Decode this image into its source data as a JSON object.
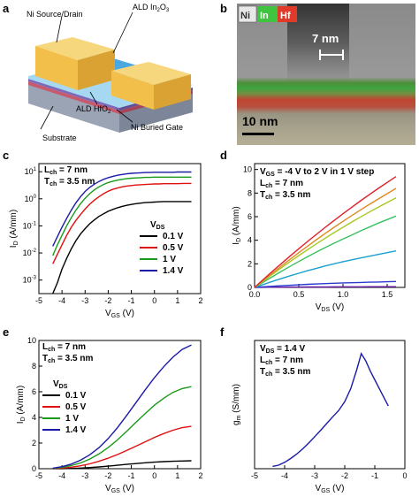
{
  "panel_labels": {
    "a": "a",
    "b": "b",
    "c": "c",
    "d": "d",
    "e": "e",
    "f": "f"
  },
  "panel_a": {
    "labels": {
      "source_drain": "Ni Source/Drain",
      "ald_in2o3": "ALD In",
      "ald_in2o3_sub2": "2",
      "ald_in2o3_o": "O",
      "ald_in2o3_sub3": "3",
      "ald_hfo2": "ALD HfO",
      "ald_hfo2_sub": "2",
      "substrate": "Substrate",
      "buried_gate": "Ni Buried Gate"
    },
    "colors": {
      "contact": "#f2c04a",
      "channel": "#4aa8e0",
      "oxide": "#7c6ab8",
      "gate": "#c85a6e",
      "substrate": "#9aa4b4"
    }
  },
  "panel_b": {
    "legend": [
      "Ni",
      "In",
      "Hf"
    ],
    "legend_colors": [
      "#ffffff",
      "#3ec43e",
      "#e23a2a"
    ],
    "scale_top": "7 nm",
    "scale_bottom": "10 nm"
  },
  "chart_data": [
    {
      "id": "c",
      "type": "line",
      "xlabel": "V",
      "xlabel_sub": "GS",
      "xlabel_unit": " (V)",
      "ylabel": "I",
      "ylabel_sub": "D",
      "ylabel_unit": " (A/mm)",
      "xlim": [
        -5,
        2
      ],
      "ylim_log": [
        -3.5,
        1.3
      ],
      "yscale": "log",
      "xticks": [
        "-5",
        "-4",
        "-3",
        "-2",
        "-1",
        "0",
        "1",
        "2"
      ],
      "yticks": [
        "10",
        "10",
        "10",
        "10",
        "10"
      ],
      "ytick_exps": [
        "1",
        "0",
        "-1",
        "-2",
        "-3"
      ],
      "annotations": [
        {
          "main": "L",
          "sub": "ch",
          "rest": " = 7 nm"
        },
        {
          "main": "T",
          "sub": "ch",
          "rest": " = 3.5 nm"
        }
      ],
      "legend_title": "V",
      "legend_title_sub": "DS",
      "x": [
        -4.4,
        -4.2,
        -4.0,
        -3.8,
        -3.6,
        -3.4,
        -3.2,
        -3.0,
        -2.8,
        -2.6,
        -2.4,
        -2.2,
        -2.0,
        -1.8,
        -1.6,
        -1.4,
        -1.2,
        -1.0,
        -0.8,
        -0.6,
        -0.4,
        -0.2,
        0.0,
        0.2,
        0.4,
        0.6,
        0.8,
        1.0,
        1.2,
        1.4,
        1.6
      ],
      "series": [
        {
          "name": "0.1 V",
          "color": "#000000",
          "log_values": [
            -3.5,
            -3.1,
            -2.6,
            -2.2,
            -1.85,
            -1.55,
            -1.3,
            -1.1,
            -0.92,
            -0.78,
            -0.65,
            -0.55,
            -0.46,
            -0.39,
            -0.33,
            -0.28,
            -0.24,
            -0.21,
            -0.18,
            -0.16,
            -0.14,
            -0.13,
            -0.12,
            -0.11,
            -0.1,
            -0.1,
            -0.1,
            -0.1,
            -0.1,
            -0.1,
            -0.1
          ]
        },
        {
          "name": "0.5 V",
          "color": "#e01010",
          "log_values": [
            -2.4,
            -2.05,
            -1.7,
            -1.35,
            -1.05,
            -0.8,
            -0.58,
            -0.38,
            -0.2,
            -0.05,
            0.08,
            0.19,
            0.28,
            0.35,
            0.4,
            0.44,
            0.47,
            0.49,
            0.51,
            0.52,
            0.53,
            0.54,
            0.55,
            0.55,
            0.56,
            0.56,
            0.56,
            0.56,
            0.57,
            0.57,
            0.57
          ]
        },
        {
          "name": "1 V",
          "color": "#1a9a1a",
          "log_values": [
            -2.1,
            -1.7,
            -1.35,
            -1.0,
            -0.7,
            -0.42,
            -0.18,
            0.02,
            0.19,
            0.33,
            0.44,
            0.53,
            0.6,
            0.65,
            0.69,
            0.72,
            0.74,
            0.76,
            0.77,
            0.78,
            0.79,
            0.79,
            0.8,
            0.8,
            0.8,
            0.8,
            0.8,
            0.8,
            0.8,
            0.8,
            0.8
          ]
        },
        {
          "name": "1.4 V",
          "color": "#1a1aa8",
          "log_values": [
            -1.75,
            -1.4,
            -1.05,
            -0.72,
            -0.42,
            -0.15,
            0.08,
            0.27,
            0.42,
            0.54,
            0.64,
            0.72,
            0.78,
            0.83,
            0.87,
            0.9,
            0.92,
            0.94,
            0.95,
            0.96,
            0.97,
            0.97,
            0.98,
            0.98,
            0.98,
            0.98,
            0.98,
            0.99,
            0.99,
            0.99,
            0.99
          ]
        }
      ]
    },
    {
      "id": "d",
      "type": "line",
      "xlabel": "V",
      "xlabel_sub": "DS",
      "xlabel_unit": " (V)",
      "ylabel": "I",
      "ylabel_sub": "D",
      "ylabel_unit": " (A/mm)",
      "xlim": [
        0,
        1.7
      ],
      "ylim": [
        0,
        10.5
      ],
      "xticks": [
        "0.0",
        "0.5",
        "1.0",
        "1.5"
      ],
      "yticks": [
        "0",
        "2",
        "4",
        "6",
        "8",
        "10"
      ],
      "annotations": [
        {
          "main": "V",
          "sub": "GS",
          "rest": " = -4 V to 2 V in 1 V step"
        },
        {
          "main": "L",
          "sub": "ch",
          "rest": " = 7 nm"
        },
        {
          "main": "T",
          "sub": "ch",
          "rest": " = 3.5 nm"
        }
      ],
      "x": [
        0,
        0.1,
        0.2,
        0.3,
        0.4,
        0.5,
        0.6,
        0.7,
        0.8,
        0.9,
        1.0,
        1.1,
        1.2,
        1.3,
        1.4,
        1.5,
        1.6
      ],
      "series": [
        {
          "color": "#6a1fa8",
          "values": [
            0,
            0.01,
            0.02,
            0.02,
            0.03,
            0.03,
            0.04,
            0.04,
            0.04,
            0.05,
            0.05,
            0.05,
            0.05,
            0.06,
            0.06,
            0.06,
            0.06
          ]
        },
        {
          "color": "#2a3ad0",
          "values": [
            0,
            0.05,
            0.1,
            0.14,
            0.18,
            0.22,
            0.26,
            0.29,
            0.32,
            0.35,
            0.38,
            0.4,
            0.42,
            0.44,
            0.46,
            0.48,
            0.5
          ]
        },
        {
          "color": "#1aa0d0",
          "values": [
            0,
            0.25,
            0.5,
            0.74,
            0.98,
            1.2,
            1.42,
            1.62,
            1.82,
            2.0,
            2.18,
            2.34,
            2.5,
            2.65,
            2.8,
            2.95,
            3.1
          ]
        },
        {
          "color": "#3ac060",
          "values": [
            0,
            0.45,
            0.9,
            1.35,
            1.78,
            2.2,
            2.6,
            3.0,
            3.38,
            3.75,
            4.1,
            4.45,
            4.8,
            5.12,
            5.45,
            5.75,
            6.05
          ]
        },
        {
          "color": "#a8c820",
          "values": [
            0,
            0.55,
            1.1,
            1.65,
            2.18,
            2.7,
            3.2,
            3.7,
            4.18,
            4.65,
            5.1,
            5.55,
            5.98,
            6.4,
            6.8,
            7.2,
            7.6
          ]
        },
        {
          "color": "#e08a20",
          "values": [
            0,
            0.6,
            1.2,
            1.8,
            2.38,
            2.95,
            3.5,
            4.05,
            4.58,
            5.1,
            5.6,
            6.1,
            6.58,
            7.05,
            7.5,
            7.95,
            8.4
          ]
        },
        {
          "color": "#e0202a",
          "values": [
            0,
            0.68,
            1.35,
            2.0,
            2.65,
            3.28,
            3.9,
            4.5,
            5.1,
            5.68,
            6.25,
            6.8,
            7.35,
            7.88,
            8.4,
            8.9,
            9.4
          ]
        }
      ]
    },
    {
      "id": "e",
      "type": "line",
      "xlabel": "V",
      "xlabel_sub": "GS",
      "xlabel_unit": " (V)",
      "ylabel": "I",
      "ylabel_sub": "D",
      "ylabel_unit": " (A/mm)",
      "xlim": [
        -5,
        2
      ],
      "ylim": [
        0,
        10
      ],
      "xticks": [
        "-5",
        "-4",
        "-3",
        "-2",
        "-1",
        "0",
        "1",
        "2"
      ],
      "yticks": [
        "0",
        "2",
        "4",
        "6",
        "8",
        "10"
      ],
      "annotations": [
        {
          "main": "L",
          "sub": "ch",
          "rest": " = 7 nm"
        },
        {
          "main": "T",
          "sub": "ch",
          "rest": " = 3.5 nm"
        }
      ],
      "legend_title": "V",
      "legend_title_sub": "DS",
      "x": [
        -4.4,
        -4.0,
        -3.6,
        -3.2,
        -2.8,
        -2.4,
        -2.0,
        -1.6,
        -1.2,
        -0.8,
        -0.4,
        0.0,
        0.4,
        0.8,
        1.2,
        1.6
      ],
      "series": [
        {
          "name": "0.1 V",
          "color": "#000000",
          "values": [
            0,
            0.01,
            0.02,
            0.05,
            0.09,
            0.14,
            0.2,
            0.27,
            0.34,
            0.4,
            0.46,
            0.51,
            0.55,
            0.58,
            0.6,
            0.62
          ]
        },
        {
          "name": "0.5 V",
          "color": "#e01010",
          "values": [
            0.01,
            0.05,
            0.12,
            0.23,
            0.38,
            0.58,
            0.82,
            1.1,
            1.42,
            1.76,
            2.1,
            2.44,
            2.74,
            3.0,
            3.2,
            3.3
          ]
        },
        {
          "name": "1 V",
          "color": "#1a9a1a",
          "values": [
            0.02,
            0.1,
            0.24,
            0.45,
            0.75,
            1.15,
            1.65,
            2.25,
            2.92,
            3.62,
            4.3,
            4.95,
            5.5,
            5.95,
            6.25,
            6.4
          ]
        },
        {
          "name": "1.4 V",
          "color": "#1a1aa8",
          "values": [
            0.04,
            0.16,
            0.36,
            0.66,
            1.08,
            1.64,
            2.35,
            3.2,
            4.15,
            5.15,
            6.15,
            7.1,
            7.95,
            8.7,
            9.3,
            9.65
          ]
        }
      ]
    },
    {
      "id": "f",
      "type": "line",
      "xlabel": "V",
      "xlabel_sub": "GS",
      "xlabel_unit": " (V)",
      "ylabel": "g",
      "ylabel_sub": "m",
      "ylabel_unit": " (S/mm)",
      "xlim": [
        -5,
        0
      ],
      "ylim": [
        0,
        4.4
      ],
      "xticks": [
        "-5",
        "-4",
        "-3",
        "-2",
        "-1",
        "0"
      ],
      "yticks": [],
      "annotations": [
        {
          "main": "V",
          "sub": "DS",
          "rest": " = 1.4 V"
        },
        {
          "main": "L",
          "sub": "ch",
          "rest": " = 7 nm"
        },
        {
          "main": "T",
          "sub": "ch",
          "rest": " = 3.5 nm"
        }
      ],
      "x": [
        -4.4,
        -4.2,
        -4.0,
        -3.8,
        -3.6,
        -3.4,
        -3.2,
        -3.0,
        -2.8,
        -2.6,
        -2.4,
        -2.2,
        -2.0,
        -1.8,
        -1.6,
        -1.45,
        -1.3,
        -1.15,
        -1.0,
        -0.85,
        -0.7,
        -0.55
      ],
      "series": [
        {
          "color": "#1a1aa8",
          "values": [
            0.08,
            0.12,
            0.22,
            0.35,
            0.5,
            0.68,
            0.88,
            1.1,
            1.32,
            1.55,
            1.78,
            2.0,
            2.3,
            2.75,
            3.4,
            3.95,
            3.7,
            3.35,
            3.05,
            2.75,
            2.45,
            2.15
          ]
        }
      ]
    }
  ]
}
